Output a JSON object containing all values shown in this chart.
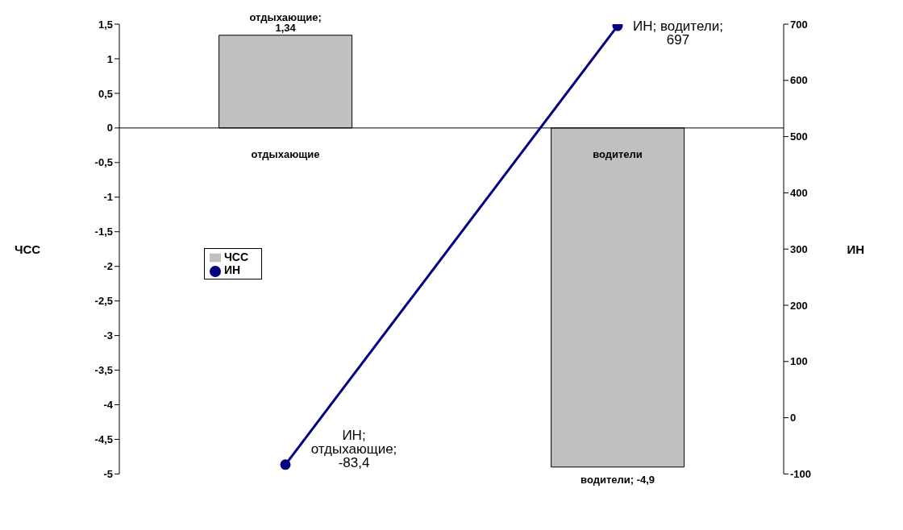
{
  "chart_data": {
    "type": "bar",
    "categories": [
      "отдыхающие",
      "водители"
    ],
    "series": [
      {
        "name": "ЧСС",
        "type": "bar",
        "color": "#c0c0c0",
        "values": [
          1.34,
          -4.9
        ],
        "value_labels": [
          "отдыхающие; 1,34",
          "водители; -4,9"
        ]
      },
      {
        "name": "ИН",
        "type": "line",
        "axis": "y2",
        "color": "#000080",
        "values": [
          -83.4,
          697
        ],
        "value_labels": [
          "ИН; отдыхающие; -83,4",
          "ИН; водители; 697"
        ]
      }
    ],
    "ylabel": "ЧСС",
    "y2label": "ИН",
    "ylim": [
      -5,
      1.5
    ],
    "yticks": [
      -5,
      {
        "value": -4.5,
        "label": "-4,5"
      },
      -4,
      {
        "value": -3.5,
        "label": "-3,5"
      },
      -3,
      {
        "value": -2.5,
        "label": "-2,5"
      },
      -2,
      {
        "value": -1.5,
        "label": "-1,5"
      },
      -1,
      {
        "value": -0.5,
        "label": "-0,5"
      },
      0,
      {
        "value": 0.5,
        "label": "0,5"
      },
      1,
      {
        "value": 1.5,
        "label": "1,5"
      }
    ],
    "y2lim": [
      -100,
      700
    ],
    "y2ticks": [
      -100,
      0,
      100,
      200,
      300,
      400,
      500,
      600,
      700
    ],
    "marker": "circle",
    "grid": false,
    "legend": "left"
  }
}
